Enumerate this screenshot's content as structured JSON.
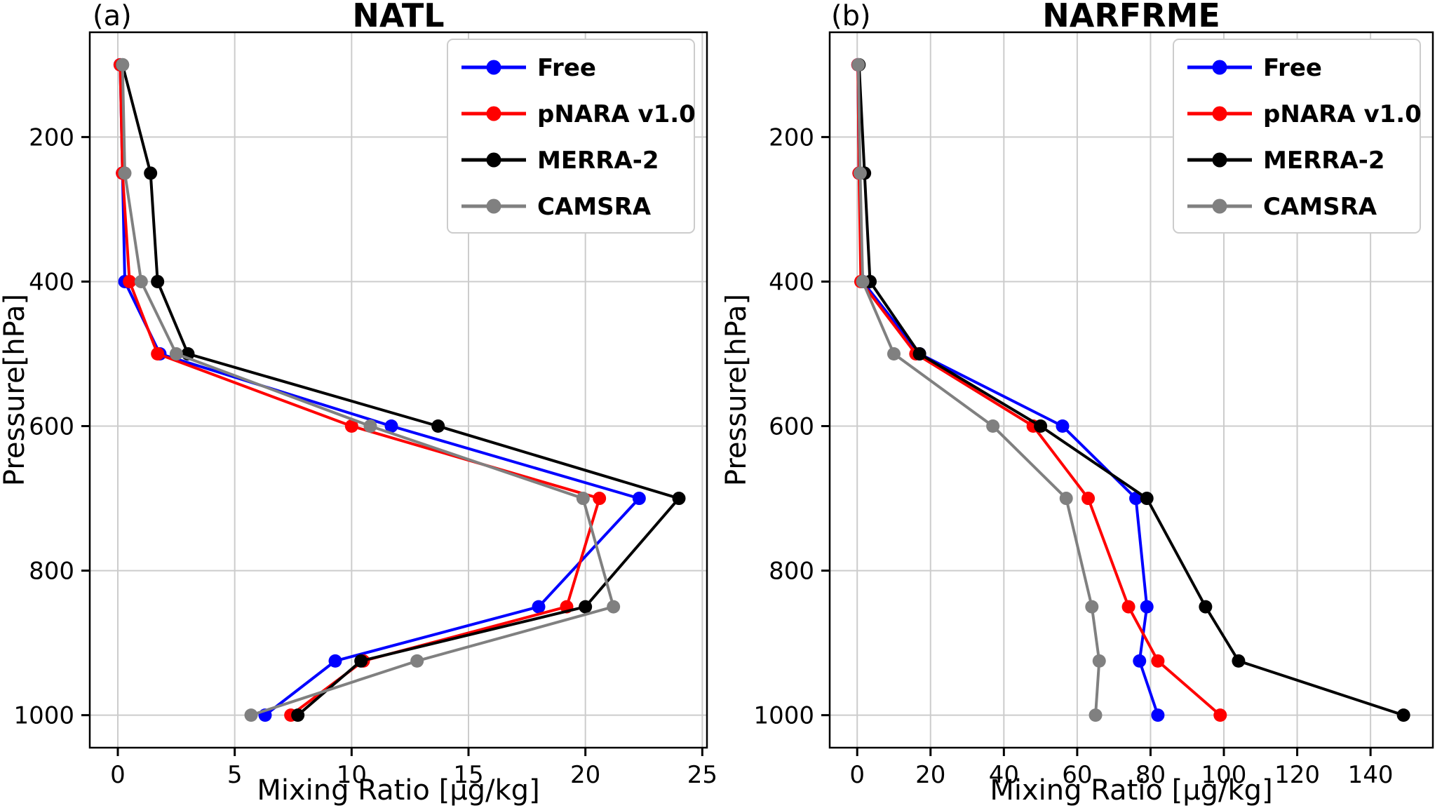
{
  "chart_data": [
    {
      "type": "line",
      "panel_label": "(a)",
      "title": "NATL",
      "xlabel": "Mixing Ratio [μg/kg]",
      "ylabel": "Pressure[hPa]",
      "xlim": [
        -1.2,
        25.2
      ],
      "xticks": [
        0,
        5,
        10,
        15,
        20,
        25
      ],
      "ylim": [
        1045,
        55
      ],
      "yticks": [
        200,
        400,
        600,
        800,
        1000
      ],
      "y_axis_inverted": true,
      "grid": true,
      "legend_position": "upper right",
      "pressure_levels_hPa": [
        100,
        250,
        400,
        500,
        600,
        700,
        850,
        925,
        1000
      ],
      "series": [
        {
          "name": "Free",
          "color": "#0000ff",
          "values": [
            0.1,
            0.2,
            0.3,
            1.8,
            11.7,
            22.3,
            18.0,
            9.3,
            6.3
          ]
        },
        {
          "name": "pNARA v1.0",
          "color": "#ff0000",
          "values": [
            0.1,
            0.2,
            0.5,
            1.7,
            10.0,
            20.6,
            19.2,
            10.5,
            7.4
          ]
        },
        {
          "name": "MERRA-2",
          "color": "#000000",
          "values": [
            0.2,
            1.4,
            1.7,
            3.0,
            13.7,
            24.0,
            20.0,
            10.4,
            7.7
          ]
        },
        {
          "name": "CAMSRA",
          "color": "#808080",
          "values": [
            0.2,
            0.3,
            1.0,
            2.5,
            10.8,
            19.9,
            21.2,
            12.8,
            5.7
          ]
        }
      ]
    },
    {
      "type": "line",
      "panel_label": "(b)",
      "title": "NARFRME",
      "xlabel": "Mixing Ratio [μg/kg]",
      "ylabel": "Pressure[hPa]",
      "xlim": [
        -7.5,
        157
      ],
      "xticks": [
        0,
        20,
        40,
        60,
        80,
        100,
        120,
        140
      ],
      "ylim": [
        1045,
        55
      ],
      "yticks": [
        200,
        400,
        600,
        800,
        1000
      ],
      "y_axis_inverted": true,
      "grid": true,
      "legend_position": "upper right",
      "pressure_levels_hPa": [
        100,
        250,
        400,
        500,
        600,
        700,
        850,
        925,
        1000
      ],
      "series": [
        {
          "name": "Free",
          "color": "#0000ff",
          "values": [
            0.2,
            0.5,
            1.5,
            17,
            56,
            76,
            79,
            77,
            82
          ]
        },
        {
          "name": "pNARA v1.0",
          "color": "#ff0000",
          "values": [
            0.2,
            0.5,
            1.0,
            16,
            48,
            63,
            74,
            82,
            99
          ]
        },
        {
          "name": "MERRA-2",
          "color": "#000000",
          "values": [
            0.5,
            2.0,
            3.5,
            17,
            50,
            79,
            95,
            104,
            149
          ]
        },
        {
          "name": "CAMSRA",
          "color": "#808080",
          "values": [
            0.3,
            0.8,
            1.5,
            10,
            37,
            57,
            64,
            66,
            65
          ]
        }
      ]
    }
  ]
}
